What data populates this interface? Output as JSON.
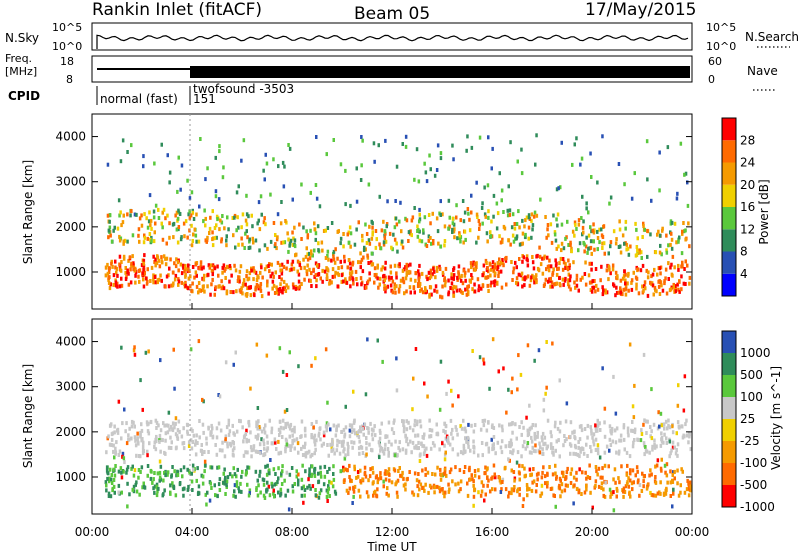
{
  "header": {
    "station": "Rankin Inlet (fitACF)",
    "beam": "Beam 05",
    "date": "17/May/2015"
  },
  "strip_panels": {
    "nsky": {
      "left_label": "N.Sky",
      "right_label": "N.Search",
      "left_ticks": [
        "10^5",
        "10^0"
      ],
      "right_ticks": [
        "10^5",
        "10^0"
      ]
    },
    "freq": {
      "left_label_1": "Freq.",
      "left_label_2": "[MHz]",
      "right_label": "Nave",
      "left_ticks": [
        "18",
        "8"
      ],
      "right_ticks": [
        "60",
        "0"
      ]
    },
    "cpid": {
      "label": "CPID",
      "segments": [
        {
          "name": "normal (fast)",
          "start_hour": 0.0
        },
        {
          "name": "twofsound -3503",
          "start_hour": 4.0
        },
        {
          "name": "151",
          "start_hour": 4.0
        }
      ]
    }
  },
  "chart_data": [
    {
      "type": "heatmap",
      "title": "",
      "xlabel": "",
      "ylabel": "Slant Range [km]",
      "xlim": [
        0,
        24
      ],
      "ylim": [
        180,
        4500
      ],
      "x_ticks": [
        "00:00",
        "04:00",
        "08:00",
        "12:00",
        "16:00",
        "20:00",
        "00:00"
      ],
      "y_ticks": [
        1000,
        2000,
        3000,
        4000
      ],
      "colorbar": {
        "label": "Power [dB]",
        "ticks": [
          "28",
          "24",
          "20",
          "16",
          "12",
          "8",
          "4"
        ],
        "colors": [
          "#0000ff",
          "#2850b4",
          "#2f8c5a",
          "#5ac83c",
          "#f0d000",
          "#f59a00",
          "#ff6a00",
          "#ff0000"
        ]
      },
      "echo_bands": [
        {
          "name": "near range scatter",
          "range_km": [
            600,
            1300
          ],
          "hours": [
            0.5,
            24
          ]
        },
        {
          "name": "far range scatter",
          "range_km": [
            1500,
            2300
          ],
          "hours": [
            0.5,
            24
          ]
        }
      ]
    },
    {
      "type": "heatmap",
      "title": "",
      "xlabel": "Time UT",
      "ylabel": "Slant Range [km]",
      "xlim": [
        0,
        24
      ],
      "ylim": [
        180,
        4500
      ],
      "x_ticks": [
        "00:00",
        "04:00",
        "08:00",
        "12:00",
        "16:00",
        "20:00",
        "00:00"
      ],
      "y_ticks": [
        1000,
        2000,
        3000,
        4000
      ],
      "colorbar": {
        "label": "Velocity [m s^-1]",
        "ticks": [
          "1000",
          "500",
          "100",
          "25",
          "-25",
          "-100",
          "-500",
          "-1000"
        ],
        "colors": [
          "#ff0000",
          "#ff6a00",
          "#f59a00",
          "#f0d000",
          "#c8c8c8",
          "#5ac83c",
          "#2f8c5a",
          "#2850b4"
        ]
      },
      "ground_scatter_color": "#c8c8c8"
    }
  ],
  "time_axis": {
    "label": "Time UT"
  }
}
